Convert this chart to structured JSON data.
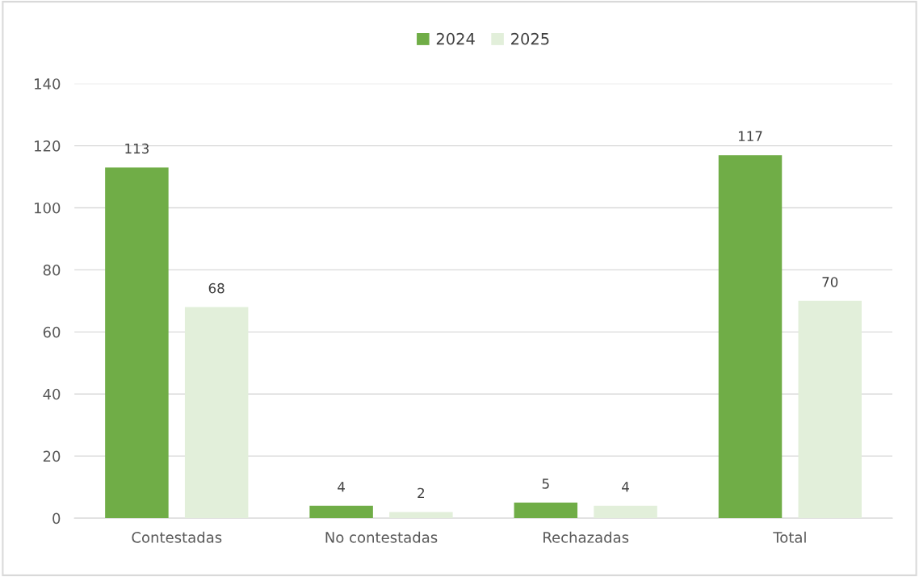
{
  "chart_data": {
    "type": "bar",
    "categories": [
      "Contestadas",
      "No contestadas",
      "Rechazadas",
      "Total"
    ],
    "series": [
      {
        "name": "2024",
        "color": "#70ad47",
        "values": [
          113,
          4,
          5,
          117
        ]
      },
      {
        "name": "2025",
        "color": "#e2efda",
        "values": [
          68,
          2,
          4,
          70
        ]
      }
    ],
    "ylim": [
      0,
      140
    ],
    "yticks": [
      0,
      20,
      40,
      60,
      80,
      100,
      120,
      140
    ],
    "grid": "y",
    "legend": "top",
    "data_labels": true
  }
}
